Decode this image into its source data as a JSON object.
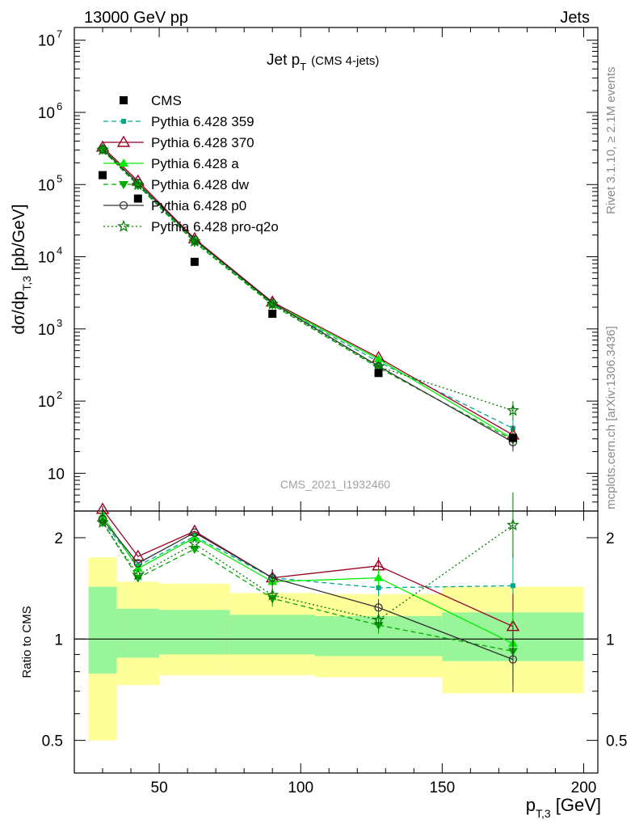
{
  "header": {
    "left": "13000 GeV pp",
    "right": "Jets"
  },
  "side_text": {
    "rivet": "Rivet 3.1.10, ≥ 2.1M events",
    "mcplots": "mcplots.cern.ch [arXiv:1306.3436]"
  },
  "watermark": "CMS_2021_I1932460",
  "chart_data": [
    {
      "type": "line",
      "title": "Jet p_T (CMS 4-jets)",
      "title_parts": {
        "main": "Jet p",
        "sub": "T",
        "suffix": "(CMS 4-jets)"
      },
      "ylabel": "dσ/dp_T,3 [pb/GeV]",
      "ylabel_parts": {
        "main": "dσ/dp",
        "sub": "T,3",
        "suffix": " [pb/GeV]"
      },
      "yscale": "log",
      "ylim": [
        3,
        15000000
      ],
      "xlim": [
        20,
        205
      ],
      "yticks": [
        {
          "v": 10,
          "label": "10"
        },
        {
          "v": 100,
          "label": "10",
          "exp": "2"
        },
        {
          "v": 1000,
          "label": "10",
          "exp": "3"
        },
        {
          "v": 10000,
          "label": "10",
          "exp": "4"
        },
        {
          "v": 100000,
          "label": "10",
          "exp": "5"
        },
        {
          "v": 1000000,
          "label": "10",
          "exp": "6"
        },
        {
          "v": 10000000,
          "label": "10",
          "exp": "7"
        }
      ],
      "x": [
        30,
        42.5,
        62.5,
        90,
        127.5,
        175
      ],
      "data": {
        "name": "CMS",
        "values": [
          135000,
          64000,
          8500,
          1620,
          245,
          31
        ]
      },
      "series": [
        {
          "name": "Pythia 6.428 359",
          "color": "#00aa88",
          "dash": "6,4",
          "marker": "square-small",
          "values": [
            305000,
            100000,
            16800,
            2230,
            350,
            42
          ]
        },
        {
          "name": "Pythia 6.428 370",
          "color": "#990022",
          "dash": "",
          "marker": "triangle-open",
          "values": [
            330000,
            112000,
            17800,
            2360,
            400,
            34
          ]
        },
        {
          "name": "Pythia 6.428 a",
          "color": "#00ee00",
          "dash": "",
          "marker": "triangle",
          "values": [
            318000,
            104000,
            17100,
            2270,
            380,
            30
          ]
        },
        {
          "name": "Pythia 6.428 dw",
          "color": "#00aa00",
          "dash": "6,4",
          "marker": "triangle-down",
          "values": [
            300000,
            97000,
            15800,
            2150,
            290,
            29
          ]
        },
        {
          "name": "Pythia 6.428 p0",
          "color": "#333333",
          "dash": "",
          "marker": "circle-open",
          "values": [
            310000,
            105000,
            17300,
            2300,
            305,
            27
          ]
        },
        {
          "name": "Pythia 6.428 pro-q2o",
          "color": "#007700",
          "dash": "2,3",
          "marker": "star",
          "values": [
            302000,
            99000,
            16300,
            2200,
            300,
            74
          ]
        }
      ]
    },
    {
      "type": "line",
      "ylabel": "Ratio to CMS",
      "xlabel": "p_T,3 [GeV]",
      "xlabel_parts": {
        "main": "p",
        "sub": "T,3",
        "suffix": " [GeV]"
      },
      "yscale": "log",
      "ylim": [
        0.4,
        2.4
      ],
      "xlim": [
        20,
        205
      ],
      "xticks": [
        {
          "v": 50,
          "label": "50"
        },
        {
          "v": 100,
          "label": "100"
        },
        {
          "v": 150,
          "label": "150"
        },
        {
          "v": 200,
          "label": "200"
        }
      ],
      "yticks": [
        {
          "v": 0.5,
          "label": "0.5"
        },
        {
          "v": 1,
          "label": "1"
        },
        {
          "v": 2,
          "label": "2"
        }
      ],
      "bands": [
        {
          "x0": 25,
          "x1": 35,
          "yellow": [
            0.5,
            1.75
          ],
          "green": [
            0.79,
            1.43
          ]
        },
        {
          "x0": 35,
          "x1": 50,
          "yellow": [
            0.73,
            1.48
          ],
          "green": [
            0.88,
            1.23
          ]
        },
        {
          "x0": 50,
          "x1": 75,
          "yellow": [
            0.78,
            1.46
          ],
          "green": [
            0.9,
            1.22
          ]
        },
        {
          "x0": 75,
          "x1": 105,
          "yellow": [
            0.78,
            1.37
          ],
          "green": [
            0.9,
            1.18
          ]
        },
        {
          "x0": 105,
          "x1": 150,
          "yellow": [
            0.77,
            1.36
          ],
          "green": [
            0.89,
            1.17
          ]
        },
        {
          "x0": 150,
          "x1": 200,
          "yellow": [
            0.69,
            1.43
          ],
          "green": [
            0.86,
            1.2
          ]
        }
      ],
      "x": [
        30,
        42.5,
        62.5,
        90,
        127.5,
        175
      ],
      "series": [
        {
          "name": "Pythia 6.428 359",
          "values": [
            2.24,
            1.65,
            2.02,
            1.52,
            1.42,
            1.44
          ]
        },
        {
          "name": "Pythia 6.428 370",
          "values": [
            2.43,
            1.76,
            2.09,
            1.52,
            1.65,
            1.09
          ]
        },
        {
          "name": "Pythia 6.428 a",
          "values": [
            2.33,
            1.62,
            2.0,
            1.48,
            1.52,
            0.97
          ]
        },
        {
          "name": "Pythia 6.428 dw",
          "values": [
            2.22,
            1.52,
            1.85,
            1.32,
            1.1,
            0.92
          ]
        },
        {
          "name": "Pythia 6.428 p0",
          "values": [
            2.27,
            1.68,
            2.07,
            1.52,
            1.24,
            0.87
          ]
        },
        {
          "name": "Pythia 6.428 pro-q2o",
          "values": [
            2.22,
            1.55,
            1.92,
            1.35,
            1.14,
            2.18
          ]
        }
      ]
    }
  ]
}
